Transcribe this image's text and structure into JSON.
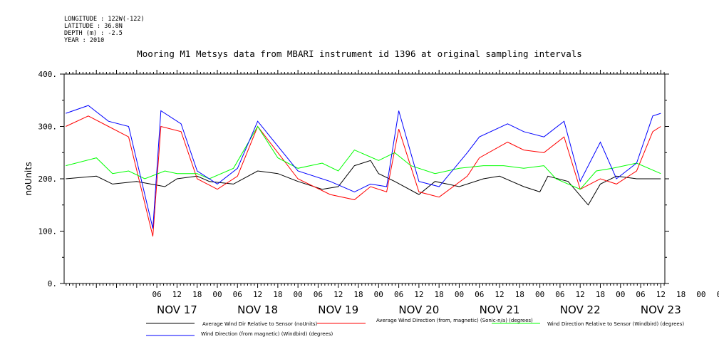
{
  "meta": {
    "longitude": "LONGITUDE : 122W(-122)",
    "latitude": "LATITUDE : 36.8N",
    "depth": "DEPTH (m) : -2.5",
    "year": "YEAR : 2010"
  },
  "chart_data": {
    "type": "line",
    "title": "Mooring M1 Metsys data from MBARI instrument id 1396 at original sampling intervals",
    "ylabel": "noUnits",
    "xlabel": "",
    "ylim": [
      0,
      400
    ],
    "yticks": [
      "0.",
      "100.",
      "200.",
      "300.",
      "400."
    ],
    "xlim": [
      -0.9,
      6.55
    ],
    "hour_ticks": [
      "06",
      "12",
      "18",
      "00",
      "06",
      "12",
      "18",
      "00",
      "06",
      "12",
      "18",
      "00",
      "06",
      "12",
      "18",
      "00",
      "06",
      "12",
      "18",
      "00",
      "06",
      "12",
      "18",
      "00",
      "06",
      "12",
      "18",
      "00",
      "06",
      "12",
      "18",
      "00"
    ],
    "day_labels": [
      "NOV 17",
      "NOV 18",
      "NOV 19",
      "NOV 20",
      "NOV 21",
      "NOV 22",
      "NOV 23"
    ],
    "grid": false,
    "legend_placement": "bottom",
    "x_units": "days since NOV 17 00:00",
    "series": [
      {
        "name": "Average Wind Dir Relative to Sensor (noUnits)",
        "color": "#000000",
        "x": [
          -0.88,
          -0.5,
          -0.3,
          0.0,
          0.35,
          0.5,
          0.75,
          0.9,
          1.2,
          1.5,
          1.75,
          2.0,
          2.3,
          2.5,
          2.7,
          2.9,
          3.0,
          3.2,
          3.5,
          3.7,
          4.0,
          4.3,
          4.5,
          4.8,
          5.0,
          5.1,
          5.35,
          5.6,
          5.75,
          5.95,
          6.2,
          6.5
        ],
        "y": [
          200,
          205,
          190,
          195,
          185,
          200,
          205,
          195,
          190,
          215,
          210,
          195,
          180,
          185,
          225,
          235,
          210,
          195,
          170,
          195,
          185,
          200,
          205,
          185,
          175,
          205,
          195,
          150,
          190,
          205,
          200,
          200
        ]
      },
      {
        "name": "Average Wind Direction (from, magnetic) (Sonic-n/a) (degrees)",
        "color": "#ff0000",
        "x": [
          -0.88,
          -0.6,
          -0.35,
          -0.1,
          0.2,
          0.3,
          0.55,
          0.75,
          1.0,
          1.25,
          1.5,
          2.0,
          2.4,
          2.7,
          2.9,
          3.1,
          3.25,
          3.5,
          3.75,
          4.1,
          4.25,
          4.6,
          4.8,
          5.05,
          5.3,
          5.5,
          5.75,
          5.95,
          6.2,
          6.4,
          6.5
        ],
        "y": [
          300,
          320,
          300,
          280,
          90,
          300,
          290,
          200,
          180,
          205,
          300,
          200,
          170,
          160,
          185,
          175,
          295,
          175,
          165,
          205,
          240,
          270,
          255,
          250,
          280,
          180,
          200,
          190,
          215,
          290,
          300
        ]
      },
      {
        "name": "Wind Direction Relative to Sensor (Windbird) (degrees)",
        "color": "#00ff00",
        "x": [
          -0.88,
          -0.5,
          -0.3,
          -0.1,
          0.1,
          0.35,
          0.5,
          0.75,
          0.9,
          1.2,
          1.5,
          1.75,
          2.0,
          2.3,
          2.5,
          2.7,
          3.0,
          3.2,
          3.4,
          3.7,
          4.0,
          4.3,
          4.55,
          4.8,
          5.05,
          5.2,
          5.5,
          5.7,
          5.9,
          6.2,
          6.5
        ],
        "y": [
          225,
          240,
          210,
          215,
          200,
          215,
          210,
          210,
          200,
          220,
          300,
          240,
          220,
          230,
          215,
          255,
          235,
          250,
          225,
          210,
          220,
          225,
          225,
          220,
          225,
          200,
          180,
          215,
          220,
          230,
          210
        ]
      },
      {
        "name": "Wind Direction (from magnetic) (Windbird) (degrees)",
        "color": "#0000ff",
        "x": [
          -0.88,
          -0.6,
          -0.35,
          -0.1,
          0.2,
          0.3,
          0.55,
          0.75,
          1.0,
          1.25,
          1.5,
          2.0,
          2.4,
          2.7,
          2.9,
          3.1,
          3.25,
          3.5,
          3.75,
          4.1,
          4.25,
          4.6,
          4.8,
          5.05,
          5.3,
          5.5,
          5.75,
          5.95,
          6.2,
          6.4,
          6.5
        ],
        "y": [
          325,
          340,
          310,
          300,
          105,
          330,
          305,
          215,
          190,
          220,
          310,
          215,
          195,
          175,
          190,
          185,
          330,
          195,
          185,
          250,
          280,
          305,
          290,
          280,
          310,
          195,
          270,
          200,
          230,
          320,
          325
        ]
      }
    ]
  },
  "legend": [
    {
      "text": "Average Wind Dir Relative to Sensor (noUnits)",
      "color": "#000000"
    },
    {
      "text": "Average Wind Direction (from, magnetic) (Sonic-n/a) (degrees)",
      "color": "#ff0000"
    },
    {
      "text": "Wind Direction Relative to Sensor (Windbird) (degrees)",
      "color": "#00ff00"
    },
    {
      "text": "Wind Direction (from magnetic) (Windbird) (degrees)",
      "color": "#0000ff"
    }
  ]
}
